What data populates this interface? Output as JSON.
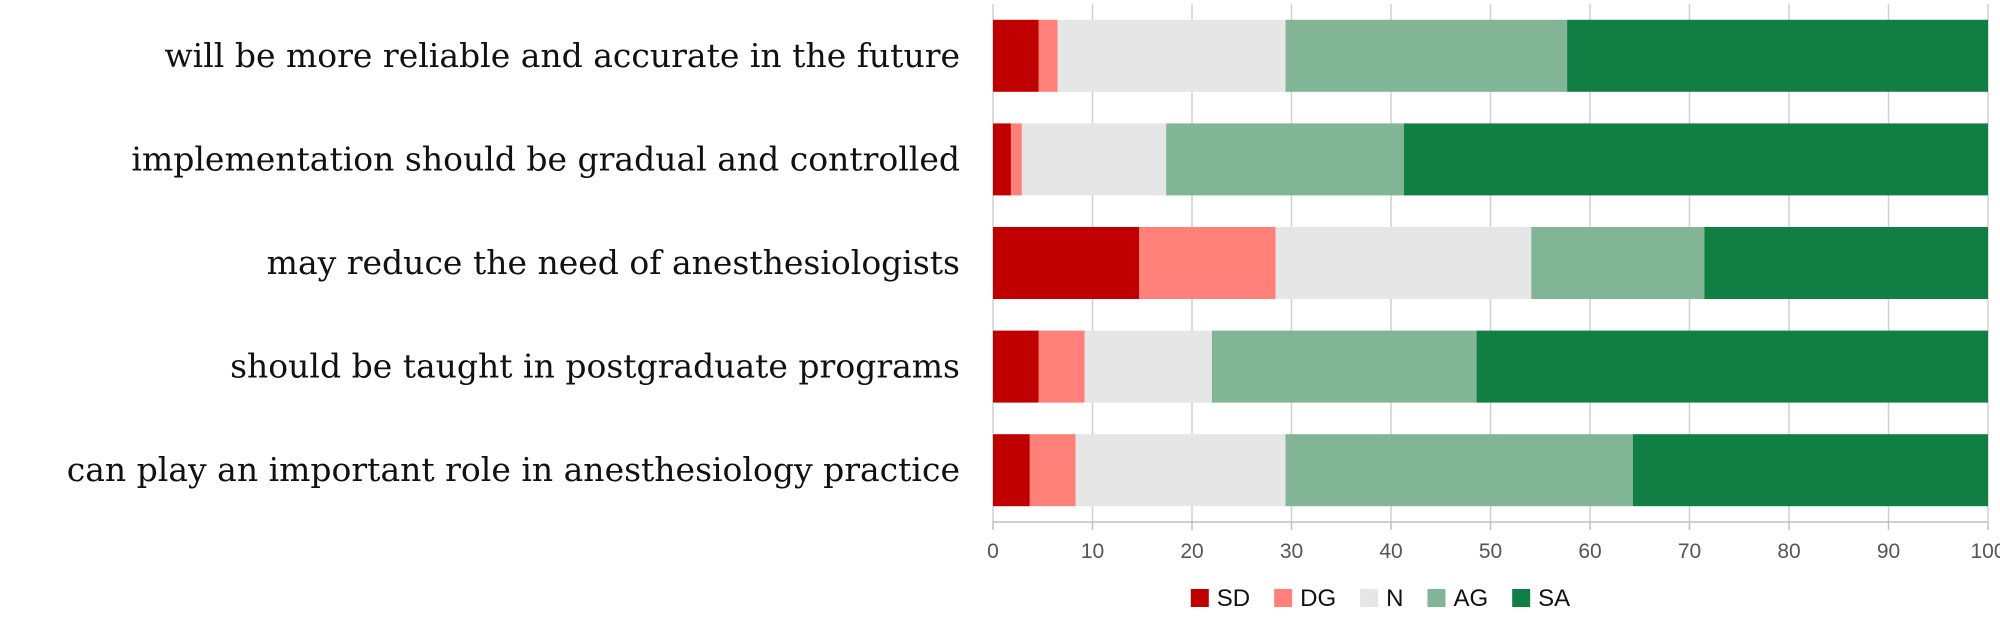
{
  "chart_data": {
    "type": "bar",
    "orientation": "horizontal",
    "stacked": true,
    "title": "",
    "xlabel": "",
    "ylabel": "",
    "xlim": [
      0,
      100
    ],
    "xticks": [
      0,
      10,
      20,
      30,
      40,
      50,
      60,
      70,
      80,
      90,
      100
    ],
    "grid": true,
    "legend_position": "bottom",
    "categories": [
      "will be more reliable and accurate in the future",
      "implementation should be gradual and controlled",
      "may reduce the need of anesthesiologists",
      "should be taught in postgraduate programs",
      "can play an important role in anesthesiology practice"
    ],
    "series": [
      {
        "name": "SD",
        "color": "#c00000",
        "values": [
          4.6,
          1.8,
          14.7,
          4.6,
          3.7
        ]
      },
      {
        "name": "DG",
        "color": "#ff7f79",
        "values": [
          1.9,
          1.1,
          13.7,
          4.6,
          4.6
        ]
      },
      {
        "name": "N",
        "color": "#e6e6e6",
        "values": [
          22.9,
          14.5,
          25.7,
          12.8,
          21.1
        ]
      },
      {
        "name": "AG",
        "color": "#82b595",
        "values": [
          28.3,
          23.9,
          17.4,
          26.6,
          34.9
        ]
      },
      {
        "name": "SA",
        "color": "#117e43",
        "values": [
          42.3,
          58.7,
          28.5,
          51.4,
          35.7
        ]
      }
    ]
  }
}
